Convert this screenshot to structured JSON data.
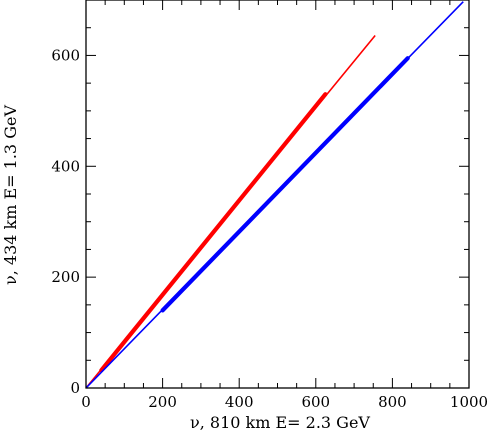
{
  "chart_data": {
    "type": "line",
    "xlabel": "ν, 810 km    E= 2.3 GeV",
    "ylabel": "ν, 434 km    E= 1.3 GeV",
    "xlim": [
      0,
      1000
    ],
    "ylim": [
      0,
      700
    ],
    "x_ticks": [
      0,
      200,
      400,
      600,
      800,
      1000
    ],
    "y_ticks": [
      0,
      200,
      400,
      600
    ],
    "x_tick_labels": [
      "0",
      "200",
      "400",
      "600",
      "800",
      "1000"
    ],
    "y_tick_labels": [
      "0",
      "200",
      "400",
      "600"
    ],
    "grid": false,
    "series": [
      {
        "color": "#ff0000",
        "line": {
          "x": [
            0,
            755
          ],
          "y": [
            0,
            636
          ]
        },
        "band": {
          "x": [
            40,
            625
          ],
          "y": [
            32,
            530
          ]
        }
      },
      {
        "color": "#0000ff",
        "line": {
          "x": [
            0,
            985
          ],
          "y": [
            0,
            697
          ]
        },
        "band": {
          "x": [
            200,
            840
          ],
          "y": [
            140,
            595
          ]
        }
      }
    ]
  }
}
